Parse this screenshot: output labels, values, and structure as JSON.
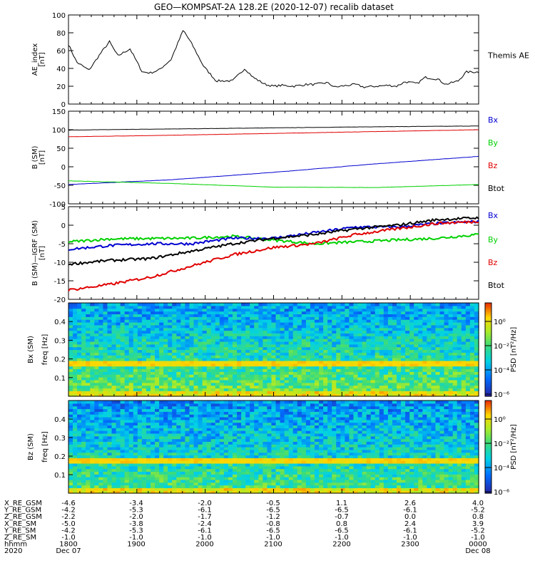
{
  "title": "GEO—KOMPSAT-2A 128.2E (2020-12-07) recalib dataset",
  "colors": {
    "black": "#000000",
    "red": "#e00000",
    "green": "#00d000",
    "blue": "#0000d0"
  },
  "chart_data": [
    {
      "type": "line",
      "id": "ae",
      "ylabel": "AE_index\n[nT]",
      "ylim": [
        0,
        100
      ],
      "yticks": [
        0,
        20,
        40,
        60,
        80,
        100
      ],
      "side_label": "Themis AE",
      "series": [
        {
          "name": "AE",
          "color": "black",
          "x": [
            0,
            0.02,
            0.05,
            0.08,
            0.1,
            0.12,
            0.15,
            0.18,
            0.2,
            0.22,
            0.25,
            0.28,
            0.3,
            0.33,
            0.36,
            0.4,
            0.43,
            0.45,
            0.48,
            0.5,
            0.52,
            0.55,
            0.58,
            0.6,
            0.63,
            0.65,
            0.68,
            0.7,
            0.72,
            0.75,
            0.78,
            0.8,
            0.82,
            0.85,
            0.87,
            0.9,
            0.92,
            0.95,
            0.97,
            1.0
          ],
          "y": [
            67,
            47,
            38,
            58,
            70,
            54,
            62,
            36,
            35,
            38,
            50,
            83,
            68,
            42,
            26,
            26,
            40,
            30,
            22,
            20,
            21,
            20,
            22,
            22,
            24,
            19,
            21,
            22,
            19,
            20,
            21,
            20,
            25,
            23,
            30,
            28,
            22,
            26,
            36,
            36
          ]
        }
      ]
    },
    {
      "type": "line",
      "id": "bsm",
      "ylabel": "B (SM)\n[nT]",
      "ylim": [
        -100,
        150
      ],
      "yticks": [
        -100,
        -50,
        0,
        50,
        100,
        150
      ],
      "series": [
        {
          "name": "Btot",
          "color": "black",
          "x": [
            0,
            0.25,
            0.5,
            0.75,
            1.0
          ],
          "y": [
            99,
            102,
            105,
            108,
            110
          ]
        },
        {
          "name": "Bz",
          "color": "red",
          "x": [
            0,
            0.25,
            0.5,
            0.75,
            1.0
          ],
          "y": [
            81,
            85,
            90,
            95,
            100
          ]
        },
        {
          "name": "Bx",
          "color": "blue",
          "x": [
            0,
            0.25,
            0.5,
            0.75,
            1.0
          ],
          "y": [
            -48,
            -35,
            -15,
            8,
            28
          ]
        },
        {
          "name": "By",
          "color": "green",
          "x": [
            0,
            0.25,
            0.5,
            0.75,
            1.0
          ],
          "y": [
            -38,
            -45,
            -55,
            -56,
            -48
          ]
        }
      ],
      "legend": [
        {
          "label": "Bx",
          "color": "blue"
        },
        {
          "label": "By",
          "color": "green"
        },
        {
          "label": "Bz",
          "color": "red"
        },
        {
          "label": "Btot",
          "color": "black"
        }
      ]
    },
    {
      "type": "line",
      "id": "bigrf",
      "ylabel": "B (SM)—IGRF (SM)\n[nT]",
      "ylim": [
        -20,
        5
      ],
      "yticks": [
        -20,
        -15,
        -10,
        -5,
        0,
        5
      ],
      "series": [
        {
          "name": "By",
          "color": "green",
          "x": [
            0,
            0.1,
            0.2,
            0.3,
            0.4,
            0.5,
            0.6,
            0.7,
            0.8,
            0.9,
            1.0
          ],
          "y": [
            -4.5,
            -3.7,
            -3.6,
            -3.5,
            -3,
            -4,
            -5,
            -4.5,
            -4,
            -3.5,
            -2.5
          ]
        },
        {
          "name": "Bx",
          "color": "blue",
          "x": [
            0,
            0.1,
            0.2,
            0.3,
            0.4,
            0.5,
            0.6,
            0.7,
            0.8,
            0.9,
            1.0
          ],
          "y": [
            -6.5,
            -5.5,
            -5,
            -5,
            -3.5,
            -3.5,
            -2,
            -0.5,
            -0.5,
            0.5,
            1
          ]
        },
        {
          "name": "Btot",
          "color": "black",
          "x": [
            0,
            0.1,
            0.2,
            0.3,
            0.4,
            0.5,
            0.6,
            0.7,
            0.8,
            0.9,
            1.0
          ],
          "y": [
            -10.5,
            -9.5,
            -9,
            -7,
            -5,
            -3.5,
            -2.5,
            -1,
            0,
            1.5,
            2
          ]
        },
        {
          "name": "Bz",
          "color": "red",
          "x": [
            0,
            0.1,
            0.2,
            0.3,
            0.4,
            0.5,
            0.6,
            0.7,
            0.8,
            0.9,
            1.0
          ],
          "y": [
            -17.5,
            -16,
            -14,
            -11,
            -8,
            -6,
            -5,
            -2.5,
            -1,
            0.5,
            1
          ]
        }
      ],
      "legend": [
        {
          "label": "Bx",
          "color": "blue"
        },
        {
          "label": "By",
          "color": "green"
        },
        {
          "label": "Bz",
          "color": "red"
        },
        {
          "label": "Btot",
          "color": "black"
        }
      ]
    },
    {
      "type": "heatmap",
      "id": "bx_spec",
      "ylabel_outer": "Bx (SM)",
      "ylabel_inner": "freq [Hz]",
      "ylim": [
        0,
        0.5
      ],
      "yticks": [
        0.1,
        0.2,
        0.3,
        0.4
      ],
      "colorbar_label": "PSD [nT²/Hz]",
      "colorbar_ticks": [
        "10⁰",
        "10⁻²",
        "10⁻⁴",
        "10⁻⁶"
      ],
      "line_freq": 0.17
    },
    {
      "type": "heatmap",
      "id": "bz_spec",
      "ylabel_outer": "Bz (SM)",
      "ylabel_inner": "freq [Hz]",
      "ylim": [
        0,
        0.5
      ],
      "yticks": [
        0.1,
        0.2,
        0.3,
        0.4
      ],
      "colorbar_label": "PSD [nT²/Hz]",
      "colorbar_ticks": [
        "10⁰",
        "10⁻²",
        "10⁻⁴",
        "10⁻⁶"
      ],
      "line_freq": 0.17
    }
  ],
  "ephemeris": {
    "labels": [
      "X_RE_GSM",
      "Y_RE_GSM",
      "Z_RE_GSM",
      "X_RE_SM",
      "Y_RE_SM",
      "Z_RE_SM",
      "hhmm",
      "2020"
    ],
    "columns": [
      [
        "-4.6",
        "-4.2",
        "-2.2",
        "-5.0",
        "-4.2",
        "-1.0",
        "1800",
        "Dec 07"
      ],
      [
        "-3.4",
        "-5.3",
        "-2.0",
        "-3.8",
        "-5.3",
        "-1.0",
        "1900",
        ""
      ],
      [
        "-2.0",
        "-6.1",
        "-1.7",
        "-2.4",
        "-6.1",
        "-1.0",
        "2000",
        ""
      ],
      [
        "-0.5",
        "-6.5",
        "-1.2",
        "-0.8",
        "-6.5",
        "-1.0",
        "2100",
        ""
      ],
      [
        "1.1",
        "-6.5",
        "-0.7",
        "0.8",
        "-6.5",
        "-1.0",
        "2200",
        ""
      ],
      [
        "2.6",
        "-6.1",
        "0.0",
        "2.4",
        "-6.1",
        "-1.0",
        "2300",
        ""
      ],
      [
        "4.0",
        "-5.2",
        "0.8",
        "3.9",
        "-5.2",
        "-1.0",
        "0000",
        "Dec 08"
      ]
    ]
  }
}
